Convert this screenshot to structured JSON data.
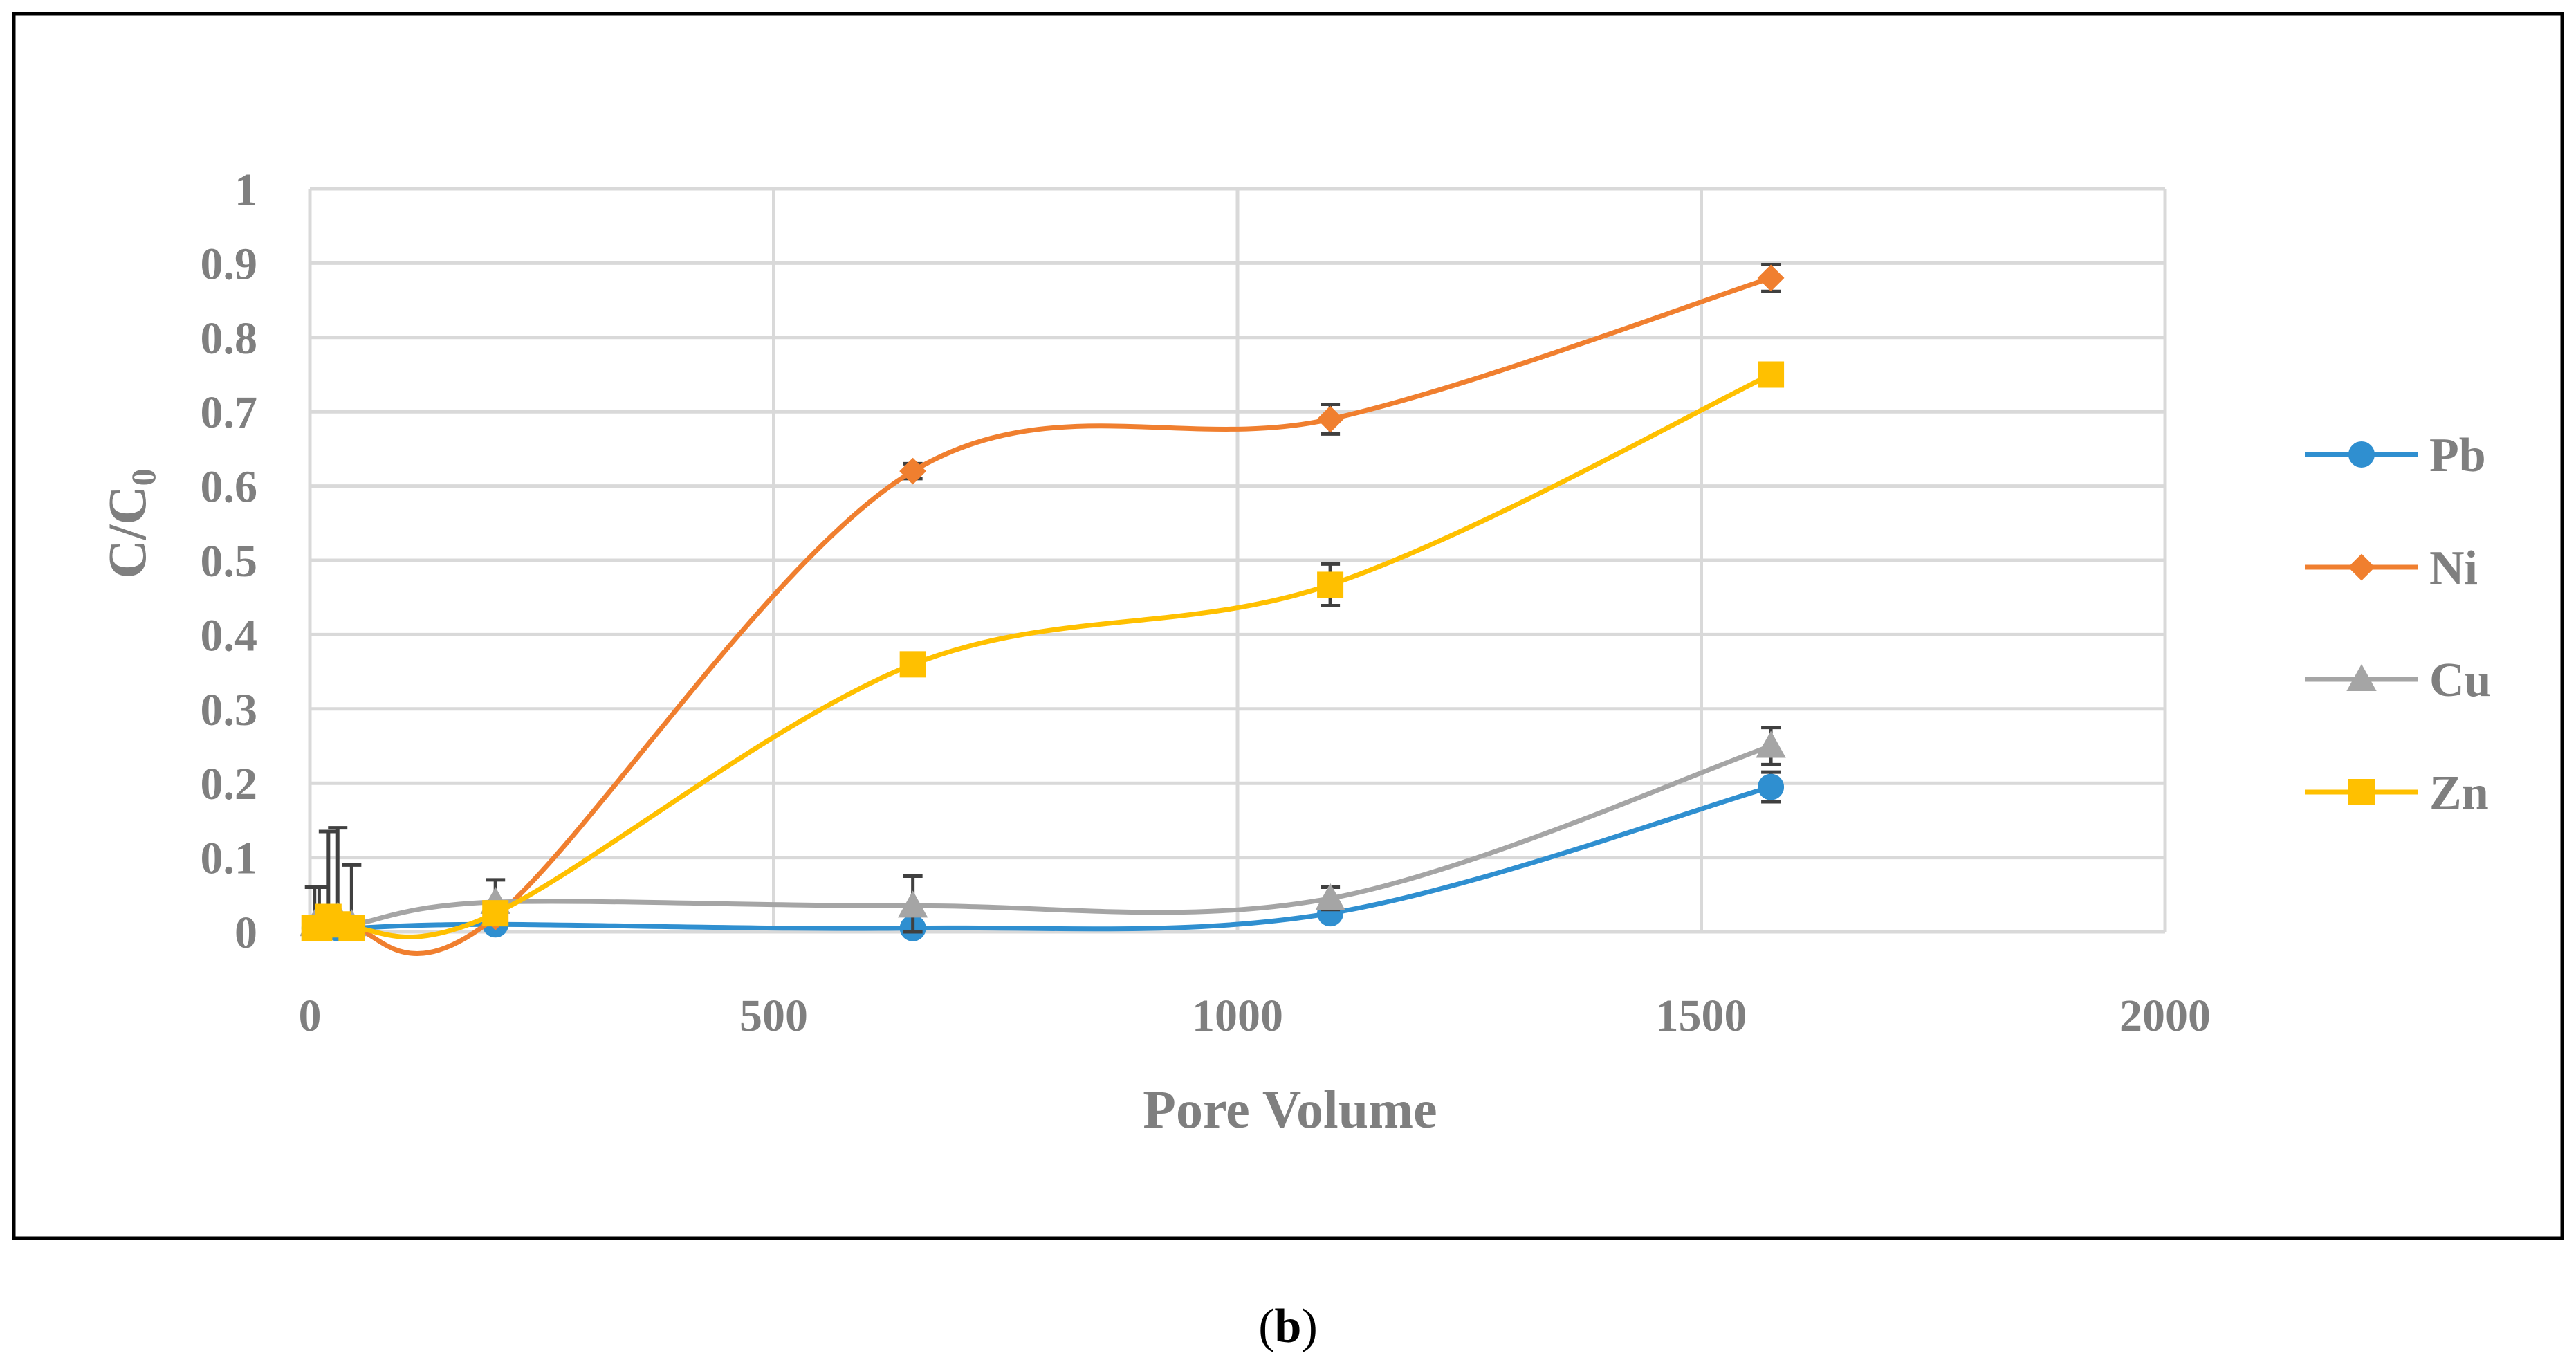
{
  "caption": {
    "open": "(",
    "letter": "b",
    "close": ")"
  },
  "chart_data": {
    "type": "line",
    "title": "",
    "xlabel": "Pore Volume",
    "ylabel": {
      "main": "C/C",
      "sub": "0"
    },
    "xlim": [
      0,
      2000
    ],
    "ylim": [
      0,
      1
    ],
    "xticks": [
      0,
      500,
      1000,
      1500,
      2000
    ],
    "xtick_labels": [
      "0",
      "500",
      "1000",
      "1500",
      "2000"
    ],
    "yticks": [
      0,
      0.1,
      0.2,
      0.3,
      0.4,
      0.5,
      0.6,
      0.7,
      0.8,
      0.9,
      1
    ],
    "ytick_labels": [
      "0",
      "0.1",
      "0.2",
      "0.3",
      "0.4",
      "0.5",
      "0.6",
      "0.7",
      "0.8",
      "0.9",
      "1"
    ],
    "grid": true,
    "legend_position": "right",
    "series": [
      {
        "name": "Pb",
        "color": "#2f8fd0",
        "marker": "circle",
        "x": [
          5,
          10,
          20,
          30,
          45,
          200,
          650,
          1100,
          1575
        ],
        "y": [
          0.005,
          0.005,
          0.008,
          0.005,
          0.005,
          0.01,
          0.005,
          0.025,
          0.195
        ],
        "err": [
          0,
          0,
          0,
          0,
          0,
          0,
          0,
          0,
          0.02
        ]
      },
      {
        "name": "Ni",
        "color": "#f07f2f",
        "marker": "diamond",
        "x": [
          5,
          10,
          20,
          30,
          45,
          200,
          650,
          1100,
          1575
        ],
        "y": [
          0.005,
          0.005,
          0.01,
          0.01,
          0.005,
          0.02,
          0.62,
          0.69,
          0.88
        ],
        "err": [
          0,
          0,
          0,
          0,
          0,
          0,
          0.01,
          0.02,
          0.018
        ]
      },
      {
        "name": "Cu",
        "color": "#a5a5a5",
        "marker": "triangle",
        "x": [
          5,
          10,
          20,
          30,
          45,
          200,
          650,
          1100,
          1575
        ],
        "y": [
          0.01,
          0.01,
          0.015,
          0.02,
          0.01,
          0.04,
          0.035,
          0.045,
          0.25
        ],
        "err": [
          0.05,
          0.05,
          0.12,
          0.12,
          0.08,
          0.03,
          0.04,
          0.015,
          0.025
        ]
      },
      {
        "name": "Zn",
        "color": "#ffc000",
        "marker": "square",
        "x": [
          5,
          10,
          20,
          30,
          45,
          200,
          650,
          1100,
          1575
        ],
        "y": [
          0.005,
          0.005,
          0.02,
          0.01,
          0.005,
          0.025,
          0.36,
          0.467,
          0.75
        ],
        "err": [
          0,
          0,
          0,
          0,
          0,
          0,
          0.01,
          0.028,
          0
        ]
      }
    ]
  }
}
